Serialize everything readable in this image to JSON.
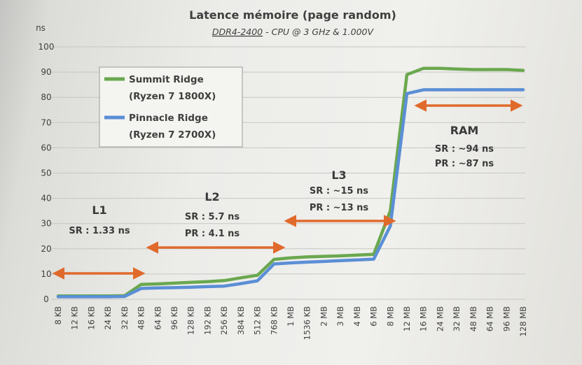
{
  "chart_data": {
    "type": "line",
    "title": "Latence mémoire (page random)",
    "subtitle_underlined": "DDR4-2400",
    "subtitle_rest": " - CPU @ 3 GHz & 1.000V",
    "ylabel": "ns",
    "ylim": [
      0,
      100
    ],
    "yticks": [
      0,
      10,
      20,
      30,
      40,
      50,
      60,
      70,
      80,
      90,
      100
    ],
    "grid": true,
    "legend_position": "top-left",
    "categories": [
      "8 KB",
      "12 KB",
      "16 KB",
      "24 KB",
      "32 KB",
      "48 KB",
      "64 KB",
      "96 KB",
      "128 KB",
      "192 KB",
      "256 KB",
      "384 KB",
      "512 KB",
      "768 KB",
      "1 MB",
      "1536 KB",
      "2 MB",
      "3 MB",
      "4 MB",
      "6 MB",
      "8 MB",
      "12 MB",
      "16 MB",
      "24 MB",
      "32 MB",
      "48 MB",
      "64 MB",
      "96 MB",
      "128 MB"
    ],
    "series": [
      {
        "name_line1": "Summit Ridge",
        "name_line2": "(Ryzen 7 1800X)",
        "color": "#6aa84f",
        "values": [
          1.3,
          1.3,
          1.3,
          1.3,
          1.4,
          5.9,
          6.1,
          6.4,
          6.7,
          7.0,
          7.4,
          8.5,
          9.5,
          15.8,
          16.4,
          16.8,
          17.0,
          17.2,
          17.5,
          17.8,
          35,
          89,
          91.5,
          91.5,
          91.2,
          91.0,
          91.0,
          91.0,
          90.7
        ]
      },
      {
        "name_line1": "Pinnacle Ridge",
        "name_line2": "(Ryzen 7 2700X)",
        "color": "#5b8fd6",
        "values": [
          1.0,
          1.0,
          1.0,
          1.0,
          1.1,
          4.3,
          4.5,
          4.6,
          4.8,
          5.0,
          5.2,
          6.2,
          7.3,
          14.0,
          14.4,
          14.7,
          15.0,
          15.3,
          15.6,
          15.9,
          29,
          81.5,
          83.0,
          83.0,
          83.0,
          83.0,
          83.0,
          83.0,
          83.0
        ]
      }
    ],
    "annotations": {
      "l1": {
        "name": "L1",
        "line1": "SR : 1.33 ns"
      },
      "l2": {
        "name": "L2",
        "line1": "SR : 5.7 ns",
        "line2": "PR : 4.1 ns"
      },
      "l3": {
        "name": "L3",
        "line1": "SR : ~15 ns",
        "line2": "PR : ~13 ns"
      },
      "ram": {
        "name": "RAM",
        "line1": "SR : ~94 ns",
        "line2": "PR : ~87 ns"
      }
    },
    "arrow_color": "#e06a2c"
  }
}
